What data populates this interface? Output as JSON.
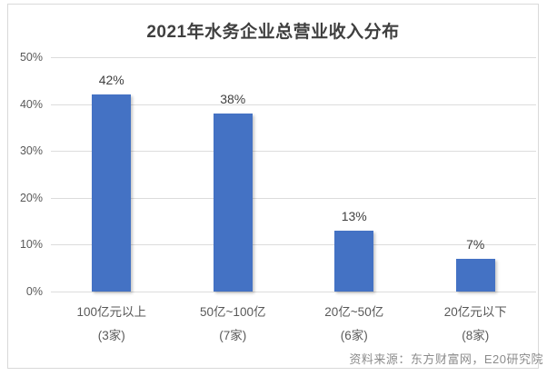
{
  "title": "2021年水务企业总营业收入分布",
  "source": "资料来源：东方财富网，E20研究院",
  "colors": {
    "bar": "#4472C4",
    "gridline": "#DCDCDC",
    "border": "#D9D9D9",
    "title_text": "#3F3F3F",
    "axis_text": "#595959",
    "value_text": "#404040",
    "source_text": "#8C8C8C",
    "background": "#FFFFFF"
  },
  "chart_data": {
    "type": "bar",
    "title": "2021年水务企业总营业收入分布",
    "categories": [
      "100亿元以上",
      "50亿~100亿",
      "20亿~50亿",
      "20亿元以下"
    ],
    "category_counts": [
      "(3家)",
      "(7家)",
      "(6家)",
      "(8家)"
    ],
    "values": [
      42,
      38,
      13,
      7
    ],
    "value_labels": [
      "42%",
      "38%",
      "13%",
      "7%"
    ],
    "xlabel": "",
    "ylabel": "",
    "ylim": [
      0,
      50
    ],
    "ytick_values": [
      0,
      10,
      20,
      30,
      40,
      50
    ],
    "ytick_labels": [
      "0%",
      "10%",
      "20%",
      "30%",
      "40%",
      "50%"
    ],
    "grid": true,
    "legend": "none",
    "bar_color": "#4472C4"
  }
}
